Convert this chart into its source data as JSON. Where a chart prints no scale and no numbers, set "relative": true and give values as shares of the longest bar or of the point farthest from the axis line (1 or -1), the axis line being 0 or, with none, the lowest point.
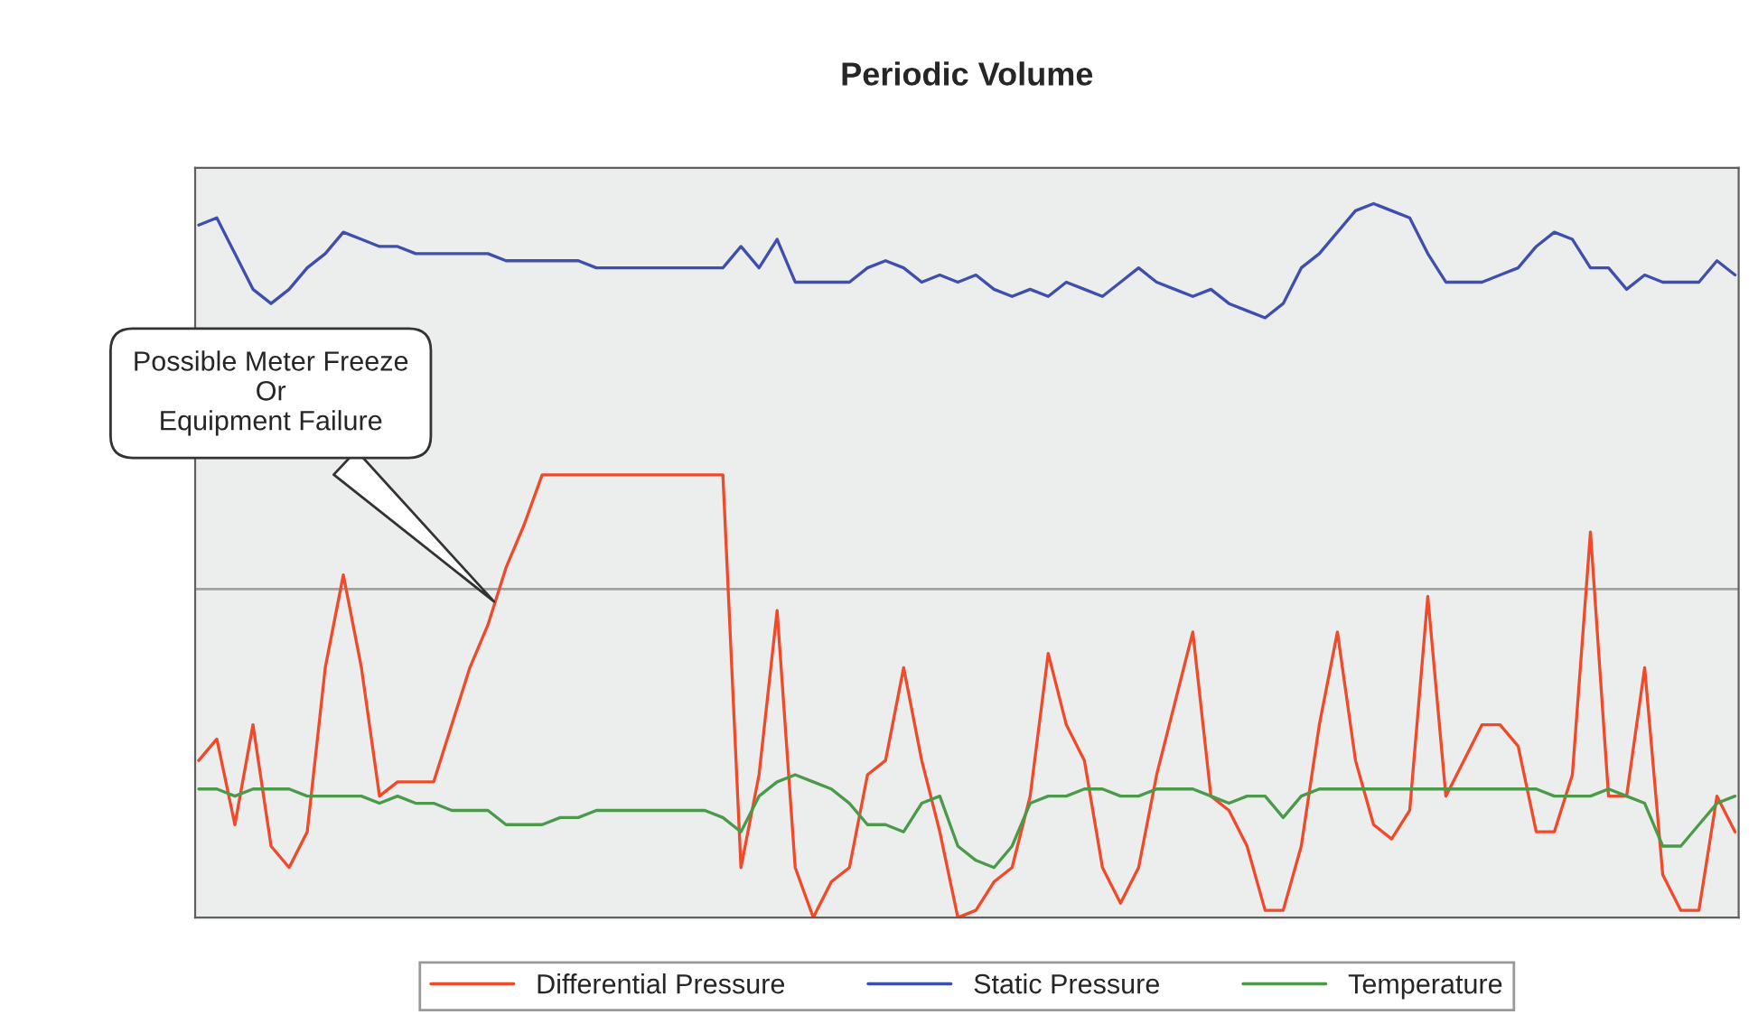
{
  "chart_data": {
    "type": "line",
    "title": "Periodic Volume",
    "relative": true,
    "legend": "bottom",
    "marker": "none",
    "line_style": "solid",
    "annotations": [
      "Possible Meter Freeze\nOr\nEquipment Failure"
    ],
    "ref_lines": [
      {
        "axis": "y",
        "value": 0.46,
        "color": "#a0a0a0"
      }
    ],
    "categories": [
      null,
      null,
      null,
      null,
      null,
      null,
      null,
      null,
      null,
      null,
      null,
      null,
      null,
      null,
      null,
      null,
      null,
      null,
      null,
      null,
      null,
      null,
      null,
      null,
      null,
      null,
      null,
      null,
      null,
      null,
      null,
      null,
      null,
      null,
      null,
      null,
      null,
      null,
      null,
      null,
      null,
      null,
      null,
      null,
      null,
      null,
      null,
      null,
      null,
      null,
      null,
      null,
      null,
      null,
      null,
      null,
      null,
      null,
      null,
      null,
      null,
      null,
      null,
      null,
      null,
      null,
      null,
      null,
      null,
      null,
      null,
      null,
      null,
      null,
      null,
      null,
      null,
      null,
      null,
      null,
      null,
      null,
      null,
      null,
      null,
      null
    ],
    "series": [
      {
        "name": "Differential Pressure",
        "color": "#f04a2a",
        "values": [
          0.22,
          0.25,
          0.13,
          0.27,
          0.1,
          0.07,
          0.12,
          0.35,
          0.48,
          0.35,
          0.17,
          0.19,
          0.19,
          0.19,
          0.27,
          0.35,
          0.41,
          0.49,
          0.55,
          0.62,
          0.62,
          0.62,
          0.62,
          0.62,
          0.62,
          0.62,
          0.62,
          0.62,
          0.62,
          0.62,
          0.07,
          0.2,
          0.43,
          0.07,
          0,
          0.05,
          0.07,
          0.2,
          0.22,
          0.35,
          0.22,
          0.12,
          0,
          0.01,
          0.05,
          0.07,
          0.17,
          0.37,
          0.27,
          0.22,
          0.07,
          0.02,
          0.07,
          0.2,
          0.3,
          0.4,
          0.17,
          0.15,
          0.1,
          0.01,
          0.01,
          0.1,
          0.27,
          0.4,
          0.22,
          0.13,
          0.11,
          0.15,
          0.45,
          0.17,
          0.22,
          0.27,
          0.27,
          0.24,
          0.12,
          0.12,
          0.2,
          0.54,
          0.17,
          0.17,
          0.35,
          0.06,
          0.01,
          0.01,
          0.17,
          0.12
        ]
      },
      {
        "name": "Static Pressure",
        "color": "#3f4fae",
        "values": [
          0.97,
          0.98,
          0.93,
          0.88,
          0.86,
          0.88,
          0.91,
          0.93,
          0.96,
          0.95,
          0.94,
          0.94,
          0.93,
          0.93,
          0.93,
          0.93,
          0.93,
          0.92,
          0.92,
          0.92,
          0.92,
          0.92,
          0.91,
          0.91,
          0.91,
          0.91,
          0.91,
          0.91,
          0.91,
          0.91,
          0.94,
          0.91,
          0.95,
          0.89,
          0.89,
          0.89,
          0.89,
          0.91,
          0.92,
          0.91,
          0.89,
          0.9,
          0.89,
          0.9,
          0.88,
          0.87,
          0.88,
          0.87,
          0.89,
          0.88,
          0.87,
          0.89,
          0.91,
          0.89,
          0.88,
          0.87,
          0.88,
          0.86,
          0.85,
          0.84,
          0.86,
          0.91,
          0.93,
          0.96,
          0.99,
          1,
          0.99,
          0.98,
          0.93,
          0.89,
          0.89,
          0.89,
          0.9,
          0.91,
          0.94,
          0.96,
          0.95,
          0.91,
          0.91,
          0.88,
          0.9,
          0.89,
          0.89,
          0.89,
          0.92,
          0.9
        ]
      },
      {
        "name": "Temperature",
        "color": "#4a9a4a",
        "values": [
          0.18,
          0.18,
          0.17,
          0.18,
          0.18,
          0.18,
          0.17,
          0.17,
          0.17,
          0.17,
          0.16,
          0.17,
          0.16,
          0.16,
          0.15,
          0.15,
          0.15,
          0.13,
          0.13,
          0.13,
          0.14,
          0.14,
          0.15,
          0.15,
          0.15,
          0.15,
          0.15,
          0.15,
          0.15,
          0.14,
          0.12,
          0.17,
          0.19,
          0.2,
          0.19,
          0.18,
          0.16,
          0.13,
          0.13,
          0.12,
          0.16,
          0.17,
          0.1,
          0.08,
          0.07,
          0.1,
          0.16,
          0.17,
          0.17,
          0.18,
          0.18,
          0.17,
          0.17,
          0.18,
          0.18,
          0.18,
          0.17,
          0.16,
          0.17,
          0.17,
          0.14,
          0.17,
          0.18,
          0.18,
          0.18,
          0.18,
          0.18,
          0.18,
          0.18,
          0.18,
          0.18,
          0.18,
          0.18,
          0.18,
          0.18,
          0.17,
          0.17,
          0.17,
          0.18,
          0.17,
          0.16,
          0.1,
          0.1,
          0.13,
          0.16,
          0.17
        ]
      }
    ]
  }
}
